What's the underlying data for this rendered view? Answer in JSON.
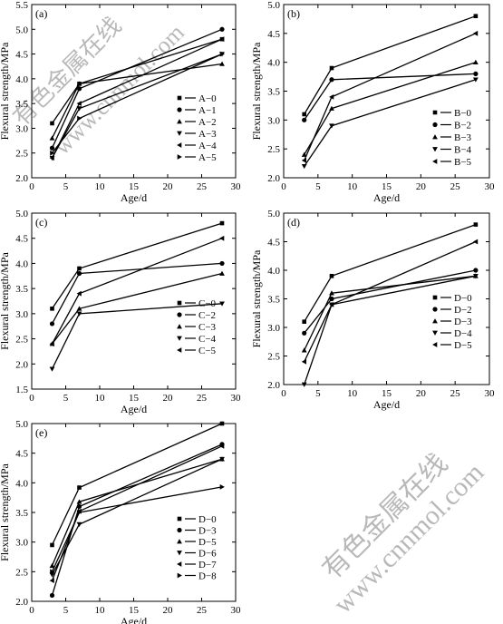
{
  "watermark": {
    "cn": "有色金属在线",
    "url": "www.cnnmol.com"
  },
  "chart_data": [
    {
      "type": "line",
      "panel_label": "(a)",
      "xlabel": "Age/d",
      "ylabel": "Flexural strength/MPa",
      "xlim": [
        0,
        30
      ],
      "ylim": [
        2.0,
        5.5
      ],
      "xticks": [
        0,
        5,
        10,
        15,
        20,
        25,
        30
      ],
      "yticks": [
        2.0,
        2.5,
        3.0,
        3.5,
        4.0,
        4.5,
        5.0,
        5.5
      ],
      "x": [
        3,
        7,
        28
      ],
      "legend_position": "right",
      "series": [
        {
          "name": "A−0",
          "marker": "square",
          "values": [
            3.1,
            3.9,
            4.8
          ]
        },
        {
          "name": "A−1",
          "marker": "circle",
          "values": [
            2.6,
            3.8,
            5.0
          ]
        },
        {
          "name": "A−2",
          "marker": "triangle-up",
          "values": [
            2.8,
            3.9,
            4.3
          ]
        },
        {
          "name": "A−3",
          "marker": "triangle-down",
          "values": [
            2.4,
            3.4,
            4.5
          ]
        },
        {
          "name": "A−4",
          "marker": "triangle-left",
          "values": [
            2.4,
            3.5,
            4.8
          ]
        },
        {
          "name": "A−5",
          "marker": "triangle-right",
          "values": [
            2.5,
            3.2,
            4.5
          ]
        }
      ]
    },
    {
      "type": "line",
      "panel_label": "(b)",
      "xlabel": "Age/d",
      "ylabel": "Flexural strength/MPa",
      "xlim": [
        0,
        30
      ],
      "ylim": [
        2.0,
        5.0
      ],
      "xticks": [
        0,
        5,
        10,
        15,
        20,
        25,
        30
      ],
      "yticks": [
        2.0,
        2.5,
        3.0,
        3.5,
        4.0,
        4.5,
        5.0
      ],
      "x": [
        3,
        7,
        28
      ],
      "legend_position": "right",
      "series": [
        {
          "name": "B−0",
          "marker": "square",
          "values": [
            3.1,
            3.9,
            4.8
          ]
        },
        {
          "name": "B−2",
          "marker": "circle",
          "values": [
            3.0,
            3.7,
            3.8
          ]
        },
        {
          "name": "B−3",
          "marker": "triangle-up",
          "values": [
            2.4,
            3.2,
            4.0
          ]
        },
        {
          "name": "B−4",
          "marker": "triangle-down",
          "values": [
            2.2,
            2.9,
            3.7
          ]
        },
        {
          "name": "B−5",
          "marker": "triangle-left",
          "values": [
            2.3,
            3.4,
            4.5
          ]
        }
      ]
    },
    {
      "type": "line",
      "panel_label": "(c)",
      "xlabel": "Age/d",
      "ylabel": "Flexural strength/MPa",
      "xlim": [
        0,
        30
      ],
      "ylim": [
        1.5,
        5.0
      ],
      "xticks": [
        0,
        5,
        10,
        15,
        20,
        25,
        30
      ],
      "yticks": [
        1.5,
        2.0,
        2.5,
        3.0,
        3.5,
        4.0,
        4.5,
        5.0
      ],
      "x": [
        3,
        7,
        28
      ],
      "legend_position": "bottom-right",
      "series": [
        {
          "name": "C−0",
          "marker": "square",
          "values": [
            3.1,
            3.9,
            4.8
          ]
        },
        {
          "name": "C−2",
          "marker": "circle",
          "values": [
            2.8,
            3.8,
            4.0
          ]
        },
        {
          "name": "C−3",
          "marker": "triangle-up",
          "values": [
            2.4,
            3.1,
            3.8
          ]
        },
        {
          "name": "C−4",
          "marker": "triangle-down",
          "values": [
            1.9,
            3.0,
            3.2
          ]
        },
        {
          "name": "C−5",
          "marker": "triangle-left",
          "values": [
            2.4,
            3.4,
            4.5
          ]
        }
      ]
    },
    {
      "type": "line",
      "panel_label": "(d)",
      "xlabel": "Age/d",
      "ylabel": "Flexural strength/MPa",
      "xlim": [
        0,
        30
      ],
      "ylim": [
        2.0,
        5.0
      ],
      "xticks": [
        0,
        5,
        10,
        15,
        20,
        25,
        30
      ],
      "yticks": [
        2.0,
        2.5,
        3.0,
        3.5,
        4.0,
        4.5,
        5.0
      ],
      "x": [
        3,
        7,
        28
      ],
      "legend_position": "bottom-right",
      "series": [
        {
          "name": "D−0",
          "marker": "square",
          "values": [
            3.1,
            3.9,
            4.8
          ]
        },
        {
          "name": "D−2",
          "marker": "circle",
          "values": [
            2.9,
            3.5,
            4.0
          ]
        },
        {
          "name": "D−3",
          "marker": "triangle-up",
          "values": [
            2.6,
            3.6,
            3.9
          ]
        },
        {
          "name": "D−4",
          "marker": "triangle-down",
          "values": [
            2.0,
            3.4,
            3.9
          ]
        },
        {
          "name": "D−5",
          "marker": "triangle-left",
          "values": [
            2.4,
            3.4,
            4.5
          ]
        }
      ]
    },
    {
      "type": "line",
      "panel_label": "(e)",
      "xlabel": "Age/d",
      "ylabel": "Flexural strength/MPa",
      "xlim": [
        0,
        30
      ],
      "ylim": [
        2.0,
        5.0
      ],
      "xticks": [
        0,
        5,
        10,
        15,
        20,
        25,
        30
      ],
      "yticks": [
        2.0,
        2.5,
        3.0,
        3.5,
        4.0,
        4.5,
        5.0
      ],
      "x": [
        3,
        7,
        28
      ],
      "legend_position": "bottom-right",
      "series": [
        {
          "name": "D−0",
          "marker": "square",
          "values": [
            2.95,
            3.92,
            5.0
          ]
        },
        {
          "name": "D−3",
          "marker": "circle",
          "values": [
            2.1,
            3.6,
            4.65
          ]
        },
        {
          "name": "D−5",
          "marker": "triangle-up",
          "values": [
            2.6,
            3.68,
            4.4
          ]
        },
        {
          "name": "D−6",
          "marker": "triangle-down",
          "values": [
            2.45,
            3.3,
            4.4
          ]
        },
        {
          "name": "D−7",
          "marker": "triangle-left",
          "values": [
            2.35,
            3.52,
            4.62
          ]
        },
        {
          "name": "D−8",
          "marker": "triangle-right",
          "values": [
            2.5,
            3.5,
            3.93
          ]
        }
      ]
    }
  ]
}
